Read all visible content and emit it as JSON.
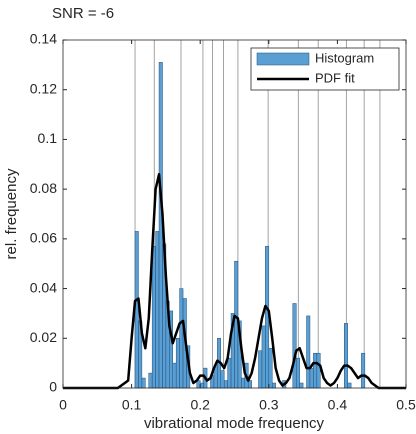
{
  "chart_data": {
    "type": "histogram",
    "title": "SNR = -6",
    "xlabel": "vibrational mode frequency",
    "ylabel": "rel. frequency",
    "bins": [
      0.1,
      0.105,
      0.11,
      0.115,
      0.12,
      0.125,
      0.13,
      0.135,
      0.14,
      0.145,
      0.15,
      0.155,
      0.16,
      0.165,
      0.17,
      0.175,
      0.18,
      0.185,
      0.19,
      0.195,
      0.2,
      0.205,
      0.21,
      0.215,
      0.22,
      0.225,
      0.23,
      0.235,
      0.24,
      0.245,
      0.25,
      0.255,
      0.26,
      0.265,
      0.27,
      0.275,
      0.28,
      0.285,
      0.29,
      0.295,
      0.3,
      0.305,
      0.31,
      0.315,
      0.32,
      0.325,
      0.33,
      0.335,
      0.34,
      0.345,
      0.35,
      0.355,
      0.36,
      0.365,
      0.37,
      0.375,
      0.38,
      0.385,
      0.39,
      0.395,
      0.4,
      0.405,
      0.41,
      0.415,
      0.42,
      0.425,
      0.43,
      0.435,
      0.44,
      0.445,
      0.45
    ],
    "series": [
      {
        "name": "Histogram",
        "color": "#5a9fd4",
        "values": [
          0,
          0.063,
          0.027,
          0.004,
          0,
          0.006,
          0.057,
          0.063,
          0.131,
          0.058,
          0.035,
          0.031,
          0.01,
          0.02,
          0.04,
          0.036,
          0.017,
          0,
          0,
          0.003,
          0.002,
          0.008,
          0,
          0.005,
          0.009,
          0.02,
          0.007,
          0.003,
          0.012,
          0.03,
          0.051,
          0.027,
          0.004,
          0.01,
          0.003,
          0,
          0,
          0.015,
          0.025,
          0.057,
          0.016,
          0.002,
          0,
          0,
          0.003,
          0,
          0,
          0.034,
          0.012,
          0.002,
          0,
          0.029,
          0.008,
          0.014,
          0.014,
          0,
          0,
          0,
          0,
          0,
          0,
          0,
          0.026,
          0.002,
          0,
          0,
          0,
          0.014,
          0,
          0
        ]
      },
      {
        "name": "PDF fit",
        "type": "line",
        "color": "#000000",
        "x": [
          0,
          0.08,
          0.095,
          0.1,
          0.105,
          0.11,
          0.115,
          0.12,
          0.125,
          0.13,
          0.135,
          0.14,
          0.145,
          0.15,
          0.155,
          0.16,
          0.165,
          0.17,
          0.175,
          0.18,
          0.185,
          0.19,
          0.195,
          0.2,
          0.205,
          0.21,
          0.215,
          0.22,
          0.225,
          0.23,
          0.235,
          0.24,
          0.245,
          0.25,
          0.255,
          0.26,
          0.265,
          0.27,
          0.275,
          0.28,
          0.285,
          0.29,
          0.295,
          0.3,
          0.305,
          0.31,
          0.315,
          0.32,
          0.325,
          0.33,
          0.335,
          0.34,
          0.345,
          0.35,
          0.355,
          0.36,
          0.365,
          0.37,
          0.375,
          0.38,
          0.385,
          0.39,
          0.395,
          0.4,
          0.405,
          0.41,
          0.415,
          0.42,
          0.425,
          0.43,
          0.435,
          0.44,
          0.445,
          0.45,
          0.46,
          0.5
        ],
        "values": [
          0,
          0,
          0.003,
          0.02,
          0.035,
          0.036,
          0.022,
          0.016,
          0.028,
          0.055,
          0.08,
          0.086,
          0.07,
          0.045,
          0.025,
          0.018,
          0.022,
          0.026,
          0.027,
          0.016,
          0.006,
          0.002,
          0.003,
          0.005,
          0.005,
          0.003,
          0.004,
          0.008,
          0.011,
          0.01,
          0.008,
          0.012,
          0.022,
          0.029,
          0.028,
          0.016,
          0.006,
          0.003,
          0.006,
          0.012,
          0.02,
          0.028,
          0.033,
          0.031,
          0.02,
          0.008,
          0.003,
          0.001,
          0.002,
          0.004,
          0.009,
          0.015,
          0.016,
          0.012,
          0.008,
          0.008,
          0.01,
          0.01,
          0.009,
          0.004,
          0.002,
          0.001,
          0.002,
          0.004,
          0.007,
          0.009,
          0.009,
          0.008,
          0.006,
          0.004,
          0.005,
          0.005,
          0.004,
          0.002,
          0,
          0
        ]
      }
    ],
    "vlines": [
      0.105,
      0.133,
      0.172,
      0.204,
      0.218,
      0.234,
      0.255,
      0.299,
      0.343,
      0.372,
      0.413,
      0.439,
      0.462
    ],
    "xlim": [
      0,
      0.5
    ],
    "ylim": [
      0,
      0.14
    ],
    "xticks": [
      0,
      0.1,
      0.2,
      0.3,
      0.4,
      0.5
    ],
    "yticks": [
      0,
      0.02,
      0.04,
      0.06,
      0.08,
      0.1,
      0.12,
      0.14
    ],
    "legend": "upper right"
  }
}
